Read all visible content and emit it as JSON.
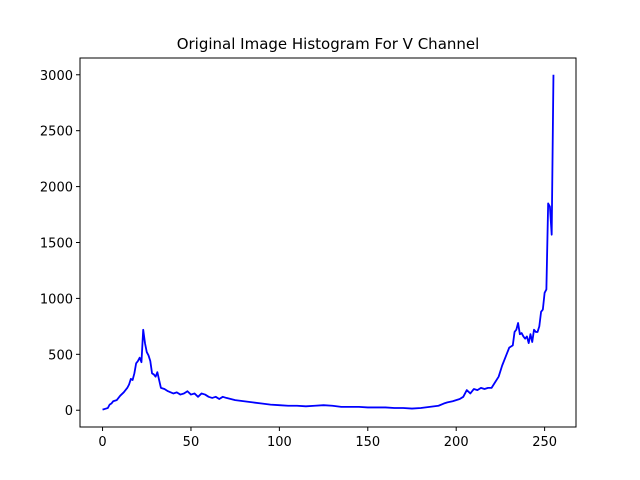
{
  "chart_data": {
    "type": "line",
    "title": "Original Image Histogram For V Channel",
    "x": [
      0,
      2,
      3,
      4,
      5,
      6,
      8,
      10,
      12,
      14,
      15,
      16,
      17,
      18,
      19,
      20,
      21,
      22,
      23,
      24,
      25,
      26,
      27,
      28,
      29,
      30,
      31,
      32,
      33,
      35,
      37,
      40,
      42,
      44,
      46,
      48,
      50,
      52,
      54,
      56,
      58,
      60,
      62,
      64,
      66,
      68,
      70,
      75,
      80,
      85,
      90,
      95,
      100,
      105,
      110,
      115,
      120,
      125,
      130,
      135,
      140,
      145,
      150,
      155,
      160,
      165,
      170,
      175,
      180,
      185,
      190,
      193,
      195,
      198,
      200,
      202,
      204,
      206,
      208,
      210,
      212,
      214,
      216,
      218,
      220,
      222,
      224,
      226,
      228,
      230,
      232,
      233,
      234,
      235,
      236,
      237,
      238,
      239,
      240,
      241,
      242,
      243,
      244,
      245,
      246,
      247,
      248,
      249,
      250,
      251,
      252,
      253,
      254,
      255
    ],
    "series": [
      {
        "name": "V",
        "color": "#0000ff",
        "values": [
          5,
          15,
          20,
          50,
          60,
          80,
          90,
          130,
          160,
          200,
          230,
          280,
          270,
          330,
          420,
          440,
          470,
          430,
          720,
          600,
          520,
          490,
          440,
          330,
          320,
          300,
          340,
          270,
          200,
          190,
          170,
          150,
          160,
          140,
          150,
          170,
          140,
          150,
          120,
          150,
          140,
          120,
          110,
          120,
          100,
          120,
          110,
          90,
          80,
          70,
          60,
          50,
          45,
          40,
          40,
          35,
          40,
          45,
          40,
          30,
          30,
          30,
          25,
          25,
          25,
          20,
          20,
          15,
          20,
          30,
          40,
          60,
          70,
          80,
          90,
          100,
          120,
          180,
          150,
          190,
          180,
          200,
          190,
          200,
          200,
          250,
          300,
          400,
          480,
          560,
          580,
          700,
          720,
          780,
          680,
          690,
          660,
          640,
          660,
          600,
          680,
          610,
          720,
          700,
          700,
          750,
          880,
          900,
          1050,
          1080,
          1850,
          1820,
          1570,
          3000
        ]
      }
    ],
    "xlim": [
      -12.75,
      267.75
    ],
    "ylim": [
      -150,
      3150
    ],
    "xticks": [
      0,
      50,
      100,
      150,
      200,
      250
    ],
    "yticks": [
      0,
      500,
      1000,
      1500,
      2000,
      2500,
      3000
    ],
    "grid": false
  }
}
